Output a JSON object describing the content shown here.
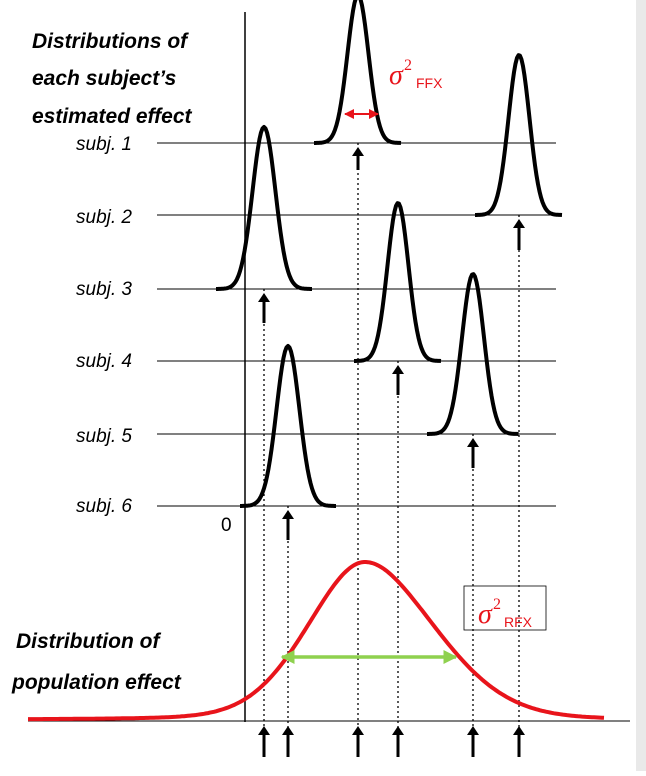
{
  "headings": {
    "distributions": [
      "Distributions of",
      "each subject’s",
      "estimated effect"
    ],
    "population": [
      "Distribution of",
      "population effect"
    ]
  },
  "subjects": [
    {
      "label": "subj. 1"
    },
    {
      "label": "subj. 2"
    },
    {
      "label": "subj. 3"
    },
    {
      "label": "subj. 4"
    },
    {
      "label": "subj. 5"
    },
    {
      "label": "subj. 6"
    }
  ],
  "zero_label": "0",
  "ffx_label": {
    "symbol": "σ",
    "sup": "2",
    "sub": "FFX"
  },
  "rfx_label": {
    "symbol": "σ",
    "sup": "2",
    "sub": "RFX"
  },
  "colors": {
    "population_curve": "#e8141b",
    "sigma_text": "#e8141b",
    "ffx_arrow": "#e8141b",
    "rfx_arrow": "#8fd14f",
    "subject_curve": "#000000"
  }
}
